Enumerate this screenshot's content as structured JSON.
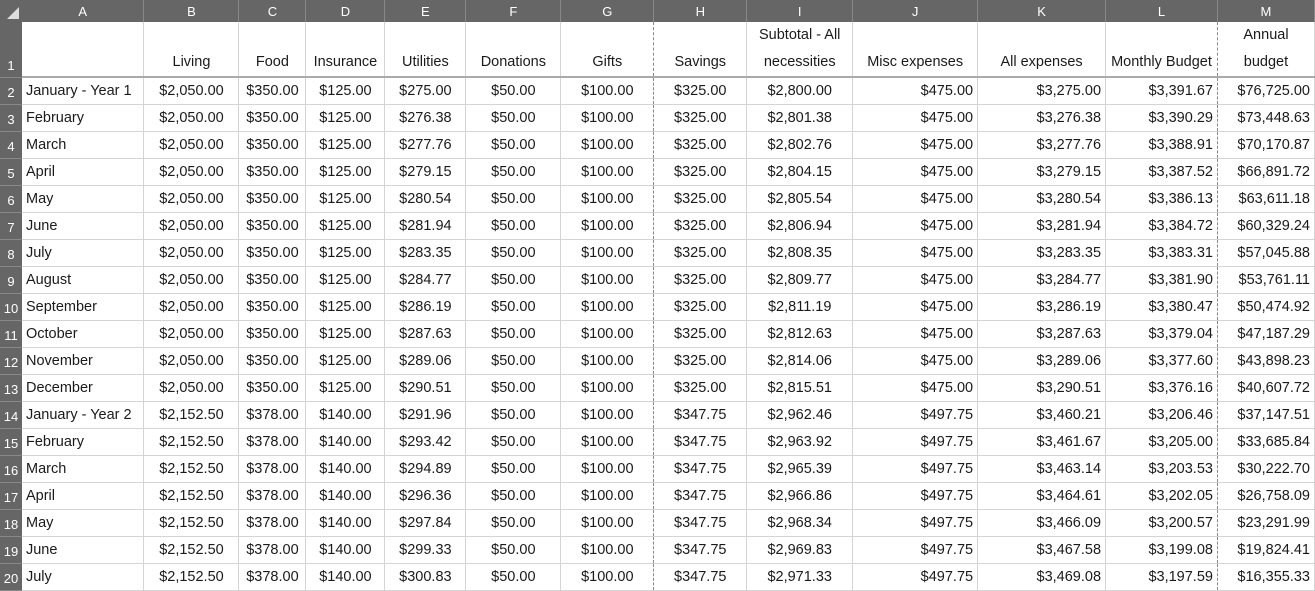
{
  "columns": [
    "A",
    "B",
    "C",
    "D",
    "E",
    "F",
    "G",
    "H",
    "I",
    "J",
    "K",
    "L",
    "M"
  ],
  "headers": [
    "",
    "Living",
    "Food",
    "Insurance",
    "Utilities",
    "Donations",
    "Gifts",
    "Savings",
    "Subtotal - All necessities",
    "Misc expenses",
    "All expenses",
    "Monthly Budget",
    "Annual budget"
  ],
  "rows": [
    [
      "January - Year 1",
      "$2,050.00",
      "$350.00",
      "$125.00",
      "$275.00",
      "$50.00",
      "$100.00",
      "$325.00",
      "$2,800.00",
      "$475.00",
      "$3,275.00",
      "$3,391.67",
      "$76,725.00"
    ],
    [
      "February",
      "$2,050.00",
      "$350.00",
      "$125.00",
      "$276.38",
      "$50.00",
      "$100.00",
      "$325.00",
      "$2,801.38",
      "$475.00",
      "$3,276.38",
      "$3,390.29",
      "$73,448.63"
    ],
    [
      "March",
      "$2,050.00",
      "$350.00",
      "$125.00",
      "$277.76",
      "$50.00",
      "$100.00",
      "$325.00",
      "$2,802.76",
      "$475.00",
      "$3,277.76",
      "$3,388.91",
      "$70,170.87"
    ],
    [
      "April",
      "$2,050.00",
      "$350.00",
      "$125.00",
      "$279.15",
      "$50.00",
      "$100.00",
      "$325.00",
      "$2,804.15",
      "$475.00",
      "$3,279.15",
      "$3,387.52",
      "$66,891.72"
    ],
    [
      "May",
      "$2,050.00",
      "$350.00",
      "$125.00",
      "$280.54",
      "$50.00",
      "$100.00",
      "$325.00",
      "$2,805.54",
      "$475.00",
      "$3,280.54",
      "$3,386.13",
      "$63,611.18"
    ],
    [
      "June",
      "$2,050.00",
      "$350.00",
      "$125.00",
      "$281.94",
      "$50.00",
      "$100.00",
      "$325.00",
      "$2,806.94",
      "$475.00",
      "$3,281.94",
      "$3,384.72",
      "$60,329.24"
    ],
    [
      "July",
      "$2,050.00",
      "$350.00",
      "$125.00",
      "$283.35",
      "$50.00",
      "$100.00",
      "$325.00",
      "$2,808.35",
      "$475.00",
      "$3,283.35",
      "$3,383.31",
      "$57,045.88"
    ],
    [
      "August",
      "$2,050.00",
      "$350.00",
      "$125.00",
      "$284.77",
      "$50.00",
      "$100.00",
      "$325.00",
      "$2,809.77",
      "$475.00",
      "$3,284.77",
      "$3,381.90",
      "$53,761.11"
    ],
    [
      "September",
      "$2,050.00",
      "$350.00",
      "$125.00",
      "$286.19",
      "$50.00",
      "$100.00",
      "$325.00",
      "$2,811.19",
      "$475.00",
      "$3,286.19",
      "$3,380.47",
      "$50,474.92"
    ],
    [
      "October",
      "$2,050.00",
      "$350.00",
      "$125.00",
      "$287.63",
      "$50.00",
      "$100.00",
      "$325.00",
      "$2,812.63",
      "$475.00",
      "$3,287.63",
      "$3,379.04",
      "$47,187.29"
    ],
    [
      "November",
      "$2,050.00",
      "$350.00",
      "$125.00",
      "$289.06",
      "$50.00",
      "$100.00",
      "$325.00",
      "$2,814.06",
      "$475.00",
      "$3,289.06",
      "$3,377.60",
      "$43,898.23"
    ],
    [
      "December",
      "$2,050.00",
      "$350.00",
      "$125.00",
      "$290.51",
      "$50.00",
      "$100.00",
      "$325.00",
      "$2,815.51",
      "$475.00",
      "$3,290.51",
      "$3,376.16",
      "$40,607.72"
    ],
    [
      "January - Year 2",
      "$2,152.50",
      "$378.00",
      "$140.00",
      "$291.96",
      "$50.00",
      "$100.00",
      "$347.75",
      "$2,962.46",
      "$497.75",
      "$3,460.21",
      "$3,206.46",
      "$37,147.51"
    ],
    [
      "February",
      "$2,152.50",
      "$378.00",
      "$140.00",
      "$293.42",
      "$50.00",
      "$100.00",
      "$347.75",
      "$2,963.92",
      "$497.75",
      "$3,461.67",
      "$3,205.00",
      "$33,685.84"
    ],
    [
      "March",
      "$2,152.50",
      "$378.00",
      "$140.00",
      "$294.89",
      "$50.00",
      "$100.00",
      "$347.75",
      "$2,965.39",
      "$497.75",
      "$3,463.14",
      "$3,203.53",
      "$30,222.70"
    ],
    [
      "April",
      "$2,152.50",
      "$378.00",
      "$140.00",
      "$296.36",
      "$50.00",
      "$100.00",
      "$347.75",
      "$2,966.86",
      "$497.75",
      "$3,464.61",
      "$3,202.05",
      "$26,758.09"
    ],
    [
      "May",
      "$2,152.50",
      "$378.00",
      "$140.00",
      "$297.84",
      "$50.00",
      "$100.00",
      "$347.75",
      "$2,968.34",
      "$497.75",
      "$3,466.09",
      "$3,200.57",
      "$23,291.99"
    ],
    [
      "June",
      "$2,152.50",
      "$378.00",
      "$140.00",
      "$299.33",
      "$50.00",
      "$100.00",
      "$347.75",
      "$2,969.83",
      "$497.75",
      "$3,467.58",
      "$3,199.08",
      "$19,824.41"
    ],
    [
      "July",
      "$2,152.50",
      "$378.00",
      "$140.00",
      "$300.83",
      "$50.00",
      "$100.00",
      "$347.75",
      "$2,971.33",
      "$497.75",
      "$3,469.08",
      "$3,197.59",
      "$16,355.33"
    ]
  ]
}
